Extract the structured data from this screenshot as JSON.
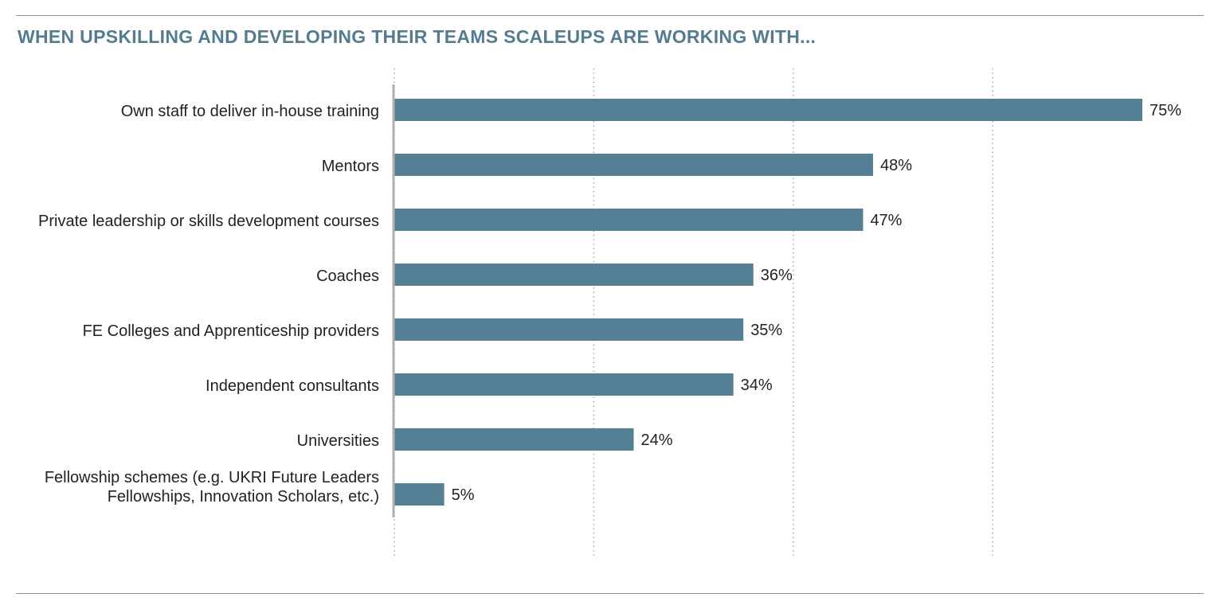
{
  "title": "WHEN UPSKILLING AND DEVELOPING THEIR TEAMS SCALEUPS ARE WORKING WITH...",
  "colors": {
    "bar": "#557f95",
    "title": "#557b90",
    "axis": "#b0b0b0",
    "grid": "#a8a8a8",
    "rule": "#7f98a8"
  },
  "chart_data": {
    "type": "bar",
    "orientation": "horizontal",
    "title": "WHEN UPSKILLING AND DEVELOPING THEIR TEAMS SCALEUPS ARE WORKING WITH...",
    "categories": [
      [
        "Own staff to deliver in-house training"
      ],
      [
        "Mentors"
      ],
      [
        "Private leadership or skills development courses"
      ],
      [
        "Coaches"
      ],
      [
        "FE Colleges and Apprenticeship providers"
      ],
      [
        "Independent consultants"
      ],
      [
        "Universities"
      ],
      [
        "Fellowship schemes (e.g. UKRI Future Leaders",
        "Fellowships, Innovation Scholars, etc.)"
      ]
    ],
    "values": [
      75,
      48,
      47,
      36,
      35,
      34,
      24,
      5
    ],
    "value_labels": [
      "75%",
      "48%",
      "47%",
      "36%",
      "35%",
      "34%",
      "24%",
      "5%"
    ],
    "xlim": [
      0,
      80
    ],
    "gridlines_at": [
      0,
      20,
      40,
      60
    ],
    "grid": true,
    "legend": "none"
  }
}
